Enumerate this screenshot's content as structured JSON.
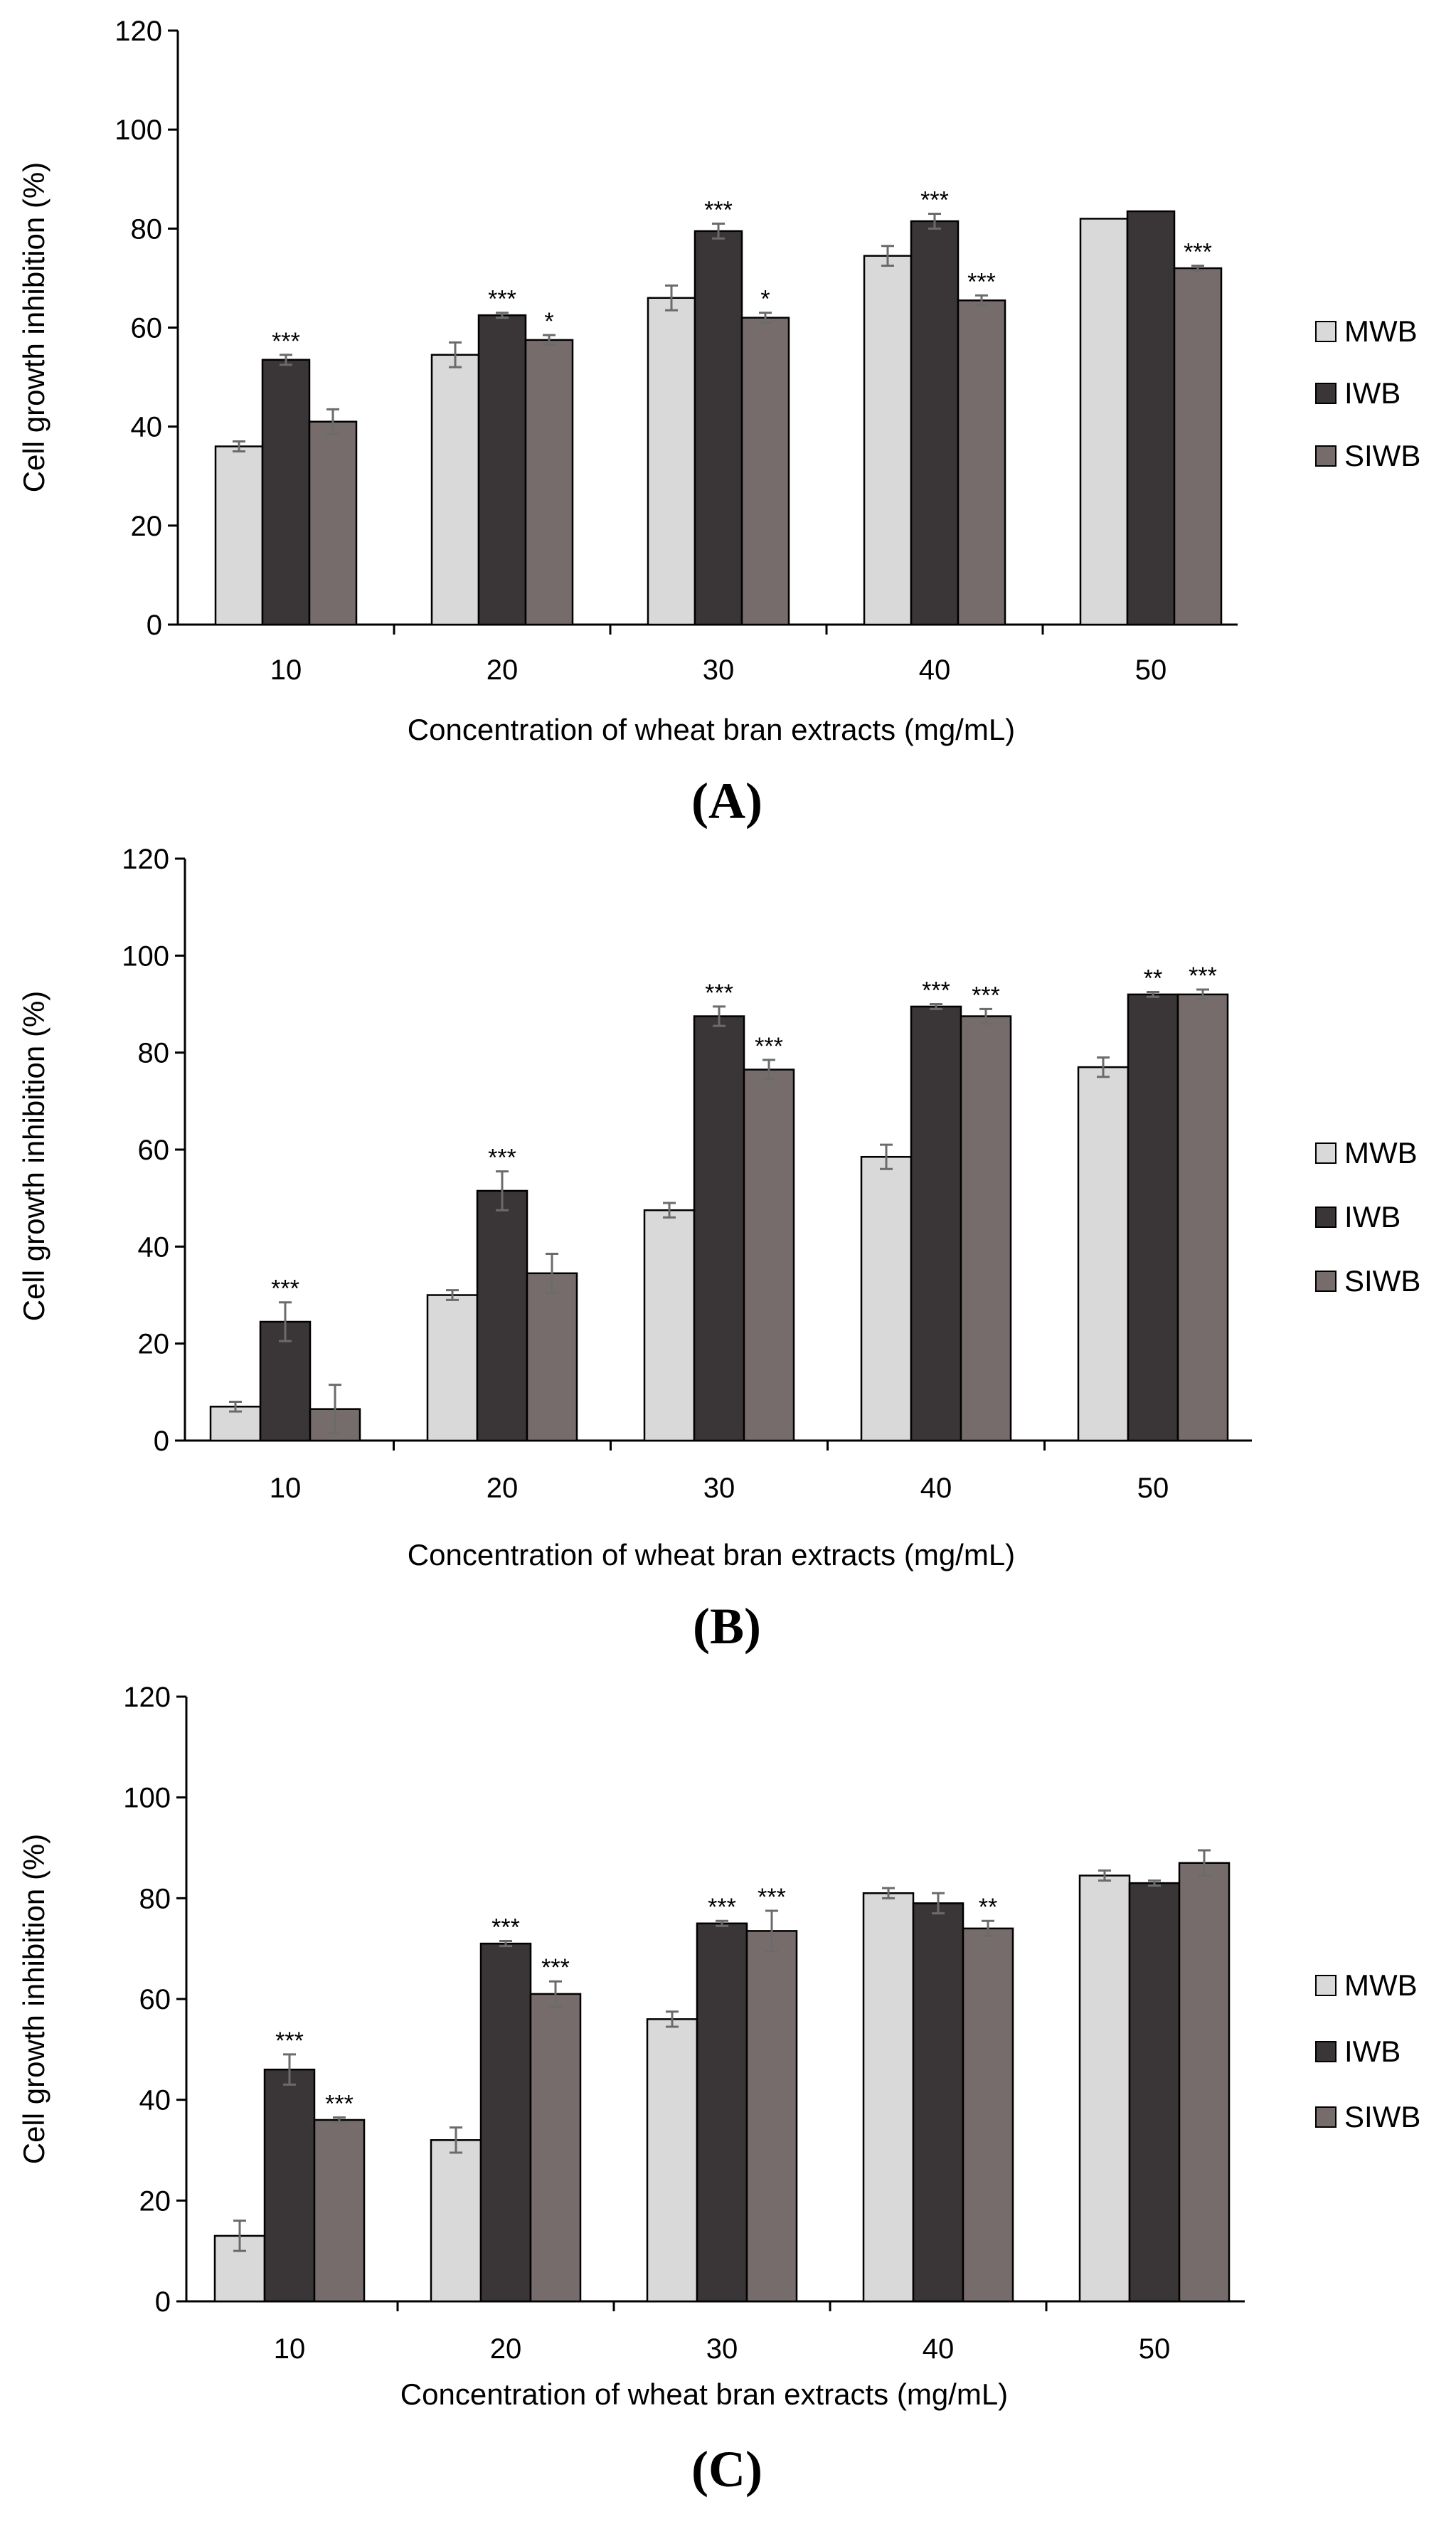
{
  "series_styles": [
    {
      "name": "MWB",
      "fill": "#d9d9d9"
    },
    {
      "name": "IWB",
      "fill": "#3a3536"
    },
    {
      "name": "SIWB",
      "fill": "#776c6c"
    }
  ],
  "error_bar_color": "#6b6b6b",
  "axis_color": "#000000",
  "chart_data": [
    {
      "panel_label": "(A)",
      "type": "bar",
      "xlabel": "Concentration of wheat bran extracts (mg/mL)",
      "ylabel": "Cell growth inhibition (%)",
      "ylim": [
        0,
        120
      ],
      "yticks": [
        0,
        20,
        40,
        60,
        80,
        100,
        120
      ],
      "categories": [
        "10",
        "20",
        "30",
        "40",
        "50"
      ],
      "legend_position": "right",
      "series": [
        {
          "name": "MWB",
          "values": [
            36,
            54.5,
            66,
            74.5,
            82
          ],
          "errors": [
            1,
            2.5,
            2.5,
            2,
            0
          ],
          "annotations": [
            "",
            "",
            "",
            "",
            ""
          ]
        },
        {
          "name": "IWB",
          "values": [
            53.5,
            62.5,
            79.5,
            81.5,
            83.5
          ],
          "errors": [
            1,
            0.5,
            1.5,
            1.5,
            0
          ],
          "annotations": [
            "***",
            "***",
            "***",
            "***",
            ""
          ]
        },
        {
          "name": "SIWB",
          "values": [
            41,
            57.5,
            62,
            65.5,
            72
          ],
          "errors": [
            2.5,
            1,
            1,
            1,
            0.5
          ],
          "annotations": [
            "",
            "*",
            "*",
            "***",
            "***"
          ]
        }
      ]
    },
    {
      "panel_label": "(B)",
      "type": "bar",
      "xlabel": "Concentration of wheat bran extracts (mg/mL)",
      "ylabel": "Cell growth inhibition (%)",
      "ylim": [
        0,
        120
      ],
      "yticks": [
        0,
        20,
        40,
        60,
        80,
        100,
        120
      ],
      "categories": [
        "10",
        "20",
        "30",
        "40",
        "50"
      ],
      "legend_position": "right",
      "series": [
        {
          "name": "MWB",
          "values": [
            7,
            30,
            47.5,
            58.5,
            77
          ],
          "errors": [
            1,
            1,
            1.5,
            2.5,
            2
          ],
          "annotations": [
            "",
            "",
            "",
            "",
            ""
          ]
        },
        {
          "name": "IWB",
          "values": [
            24.5,
            51.5,
            87.5,
            89.5,
            92
          ],
          "errors": [
            4,
            4,
            2,
            0.5,
            0.5
          ],
          "annotations": [
            "***",
            "***",
            "***",
            "***",
            "**"
          ]
        },
        {
          "name": "SIWB",
          "values": [
            6.5,
            34.5,
            76.5,
            87.5,
            92
          ],
          "errors": [
            5,
            4,
            2,
            1.5,
            1
          ],
          "annotations": [
            "",
            "",
            "***",
            "***",
            "***"
          ]
        }
      ]
    },
    {
      "panel_label": "(C)",
      "type": "bar",
      "xlabel": "Concentration of wheat bran extracts (mg/mL)",
      "ylabel": "Cell growth inhibition (%)",
      "ylim": [
        0,
        120
      ],
      "yticks": [
        0,
        20,
        40,
        60,
        80,
        100,
        120
      ],
      "categories": [
        "10",
        "20",
        "30",
        "40",
        "50"
      ],
      "legend_position": "right",
      "series": [
        {
          "name": "MWB",
          "values": [
            13,
            32,
            56,
            81,
            84.5
          ],
          "errors": [
            3,
            2.5,
            1.5,
            1,
            1
          ],
          "annotations": [
            "",
            "",
            "",
            "",
            ""
          ]
        },
        {
          "name": "IWB",
          "values": [
            46,
            71,
            75,
            79,
            83
          ],
          "errors": [
            3,
            0.5,
            0.5,
            2,
            0.5
          ],
          "annotations": [
            "***",
            "***",
            "***",
            "",
            ""
          ]
        },
        {
          "name": "SIWB",
          "values": [
            36,
            61,
            73.5,
            74,
            87
          ],
          "errors": [
            0.5,
            2.5,
            4,
            1.5,
            2.5
          ],
          "annotations": [
            "***",
            "***",
            "***",
            "**",
            ""
          ]
        }
      ]
    }
  ]
}
